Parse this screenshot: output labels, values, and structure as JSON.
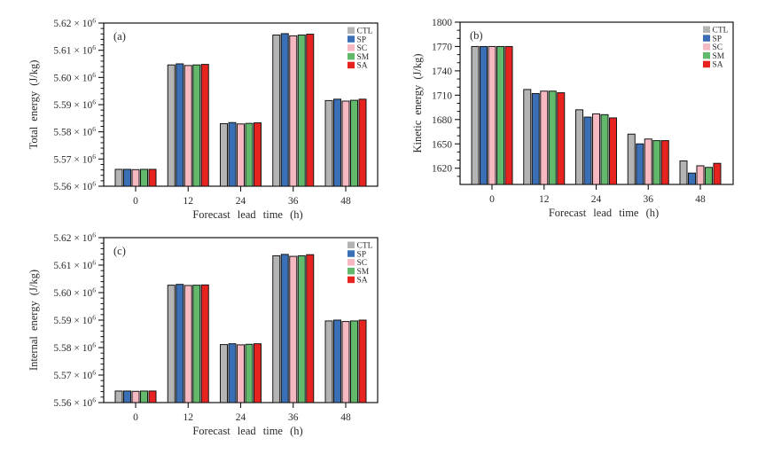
{
  "figure": {
    "background": "#ffffff",
    "text_color": "#2a2a2a",
    "axis_color": "#111111",
    "bar_stroke": "#151515"
  },
  "legend": {
    "entries": [
      "CTL",
      "SP",
      "SC",
      "SM",
      "SA"
    ],
    "colors": [
      "#b4b4b4",
      "#3b6fb5",
      "#f6b8c1",
      "#62b96c",
      "#e6231e"
    ]
  },
  "chart_data": [
    {
      "id": "a",
      "panel_label": "(a)",
      "type": "bar",
      "title": "",
      "xlabel": "Forecast lead time (h)",
      "ylabel": "Total energy (J/kg)",
      "values_unit": "10^6 J/kg",
      "categories": [
        "0",
        "12",
        "24",
        "36",
        "48"
      ],
      "ylim": [
        5.56,
        5.62
      ],
      "ytick_step": 0.01,
      "minor_step": 0.002,
      "yticks": [
        {
          "v": 5.56,
          "label": "5.56 × 10^6"
        },
        {
          "v": 5.57,
          "label": "5.57 × 10^6"
        },
        {
          "v": 5.58,
          "label": "5.58 × 10^6"
        },
        {
          "v": 5.59,
          "label": "5.59 × 10^6"
        },
        {
          "v": 5.6,
          "label": "5.60 × 10^6"
        },
        {
          "v": 5.61,
          "label": "5.61 × 10^6"
        },
        {
          "v": 5.62,
          "label": "5.62 × 10^6"
        }
      ],
      "legend_position": "top-right-inside",
      "grid": false,
      "series": [
        {
          "name": "CTL",
          "color": "#b4b4b4",
          "values": [
            5.5662,
            5.6046,
            5.583,
            5.6156,
            5.5915
          ]
        },
        {
          "name": "SP",
          "color": "#3b6fb5",
          "values": [
            5.5662,
            5.605,
            5.5834,
            5.6161,
            5.592
          ]
        },
        {
          "name": "SC",
          "color": "#f6b8c1",
          "values": [
            5.5661,
            5.6044,
            5.5829,
            5.6153,
            5.5913
          ]
        },
        {
          "name": "SM",
          "color": "#62b96c",
          "values": [
            5.5662,
            5.6046,
            5.5831,
            5.6156,
            5.5916
          ]
        },
        {
          "name": "SA",
          "color": "#e6231e",
          "values": [
            5.5662,
            5.6048,
            5.5833,
            5.6159,
            5.592
          ]
        }
      ]
    },
    {
      "id": "b",
      "panel_label": "(b)",
      "type": "bar",
      "title": "",
      "xlabel": "Forecast lead time (h)",
      "ylabel": "Kinetic energy (J/kg)",
      "values_unit": "J/kg",
      "categories": [
        "0",
        "12",
        "24",
        "36",
        "48"
      ],
      "ylim": [
        1600,
        1800
      ],
      "ytick_step": 30,
      "minor_step": 10,
      "yticks": [
        {
          "v": 1620,
          "label": "1620"
        },
        {
          "v": 1650,
          "label": "1650"
        },
        {
          "v": 1680,
          "label": "1680"
        },
        {
          "v": 1710,
          "label": "1710"
        },
        {
          "v": 1740,
          "label": "1740"
        },
        {
          "v": 1770,
          "label": "1770"
        },
        {
          "v": 1800,
          "label": "1800"
        }
      ],
      "legend_position": "top-right-inside",
      "grid": false,
      "series": [
        {
          "name": "CTL",
          "color": "#b4b4b4",
          "values": [
            1770,
            1717,
            1692,
            1662,
            1629
          ]
        },
        {
          "name": "SP",
          "color": "#3b6fb5",
          "values": [
            1770,
            1712,
            1683,
            1650,
            1614
          ]
        },
        {
          "name": "SC",
          "color": "#f6b8c1",
          "values": [
            1770,
            1715,
            1687,
            1656,
            1623
          ]
        },
        {
          "name": "SM",
          "color": "#62b96c",
          "values": [
            1770,
            1715,
            1686,
            1654,
            1621
          ]
        },
        {
          "name": "SA",
          "color": "#e6231e",
          "values": [
            1770,
            1713,
            1682,
            1654,
            1626
          ]
        }
      ]
    },
    {
      "id": "c",
      "panel_label": "(c)",
      "type": "bar",
      "title": "",
      "xlabel": "Forecast lead time (h)",
      "ylabel": "Internal energy (J/kg)",
      "values_unit": "10^6 J/kg",
      "categories": [
        "0",
        "12",
        "24",
        "36",
        "48"
      ],
      "ylim": [
        5.56,
        5.62
      ],
      "ytick_step": 0.01,
      "minor_step": 0.002,
      "yticks": [
        {
          "v": 5.56,
          "label": "5.56 × 10^6"
        },
        {
          "v": 5.57,
          "label": "5.57 × 10^6"
        },
        {
          "v": 5.58,
          "label": "5.58 × 10^6"
        },
        {
          "v": 5.59,
          "label": "5.59 × 10^6"
        },
        {
          "v": 5.6,
          "label": "5.60 × 10^6"
        },
        {
          "v": 5.61,
          "label": "5.61 × 10^6"
        },
        {
          "v": 5.62,
          "label": "5.62 × 10^6"
        }
      ],
      "legend_position": "top-right-inside",
      "grid": false,
      "series": [
        {
          "name": "CTL",
          "color": "#b4b4b4",
          "values": [
            5.5642,
            5.6027,
            5.5811,
            5.6134,
            5.5897
          ]
        },
        {
          "name": "SP",
          "color": "#3b6fb5",
          "values": [
            5.5642,
            5.603,
            5.5814,
            5.6139,
            5.59
          ]
        },
        {
          "name": "SC",
          "color": "#f6b8c1",
          "values": [
            5.5641,
            5.6026,
            5.581,
            5.6132,
            5.5895
          ]
        },
        {
          "name": "SM",
          "color": "#62b96c",
          "values": [
            5.5642,
            5.6027,
            5.5812,
            5.6134,
            5.5897
          ]
        },
        {
          "name": "SA",
          "color": "#e6231e",
          "values": [
            5.5642,
            5.6028,
            5.5814,
            5.6138,
            5.59
          ]
        }
      ]
    }
  ]
}
